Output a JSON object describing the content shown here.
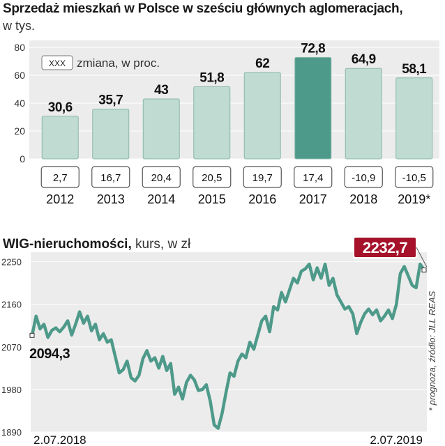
{
  "header": {
    "title": "Sprzedaż mieszkań w Polsce w sześciu głównych aglomeracjach,",
    "unit": "w tys."
  },
  "legend": {
    "box_label": "XXX",
    "text": "zmiana, w proc."
  },
  "colors": {
    "bar": "#bfdbd2",
    "bar_highlight": "#4e9a8a",
    "line": "#4e9a8a",
    "badge_last": "#a5122a",
    "panel_bg": "#ececec"
  },
  "wig": {
    "title_bold": "WIG-nieruchomości,",
    "title_rest": "kurs, w zł",
    "first_label": "2094,3",
    "last_label": "2232,7"
  },
  "source_note": "* prognoza, źródło: JLL REAS",
  "chart_data": [
    {
      "type": "bar",
      "categories": [
        "2012",
        "2013",
        "2014",
        "2015",
        "2016",
        "2017",
        "2018",
        "2019*"
      ],
      "values": [
        30.6,
        35.7,
        43,
        51.8,
        62,
        72.8,
        64.9,
        58.1
      ],
      "value_labels": [
        "30,6",
        "35,7",
        "43",
        "51,8",
        "62",
        "72,8",
        "64,9",
        "58,1"
      ],
      "change_labels": [
        "2,7",
        "16,7",
        "20,4",
        "20,5",
        "19,7",
        "17,4",
        "-10,9",
        "-10,5"
      ],
      "highlight_index": 5,
      "yticks": [
        "0",
        "20",
        "40",
        "60",
        "80"
      ],
      "ytick_values": [
        0,
        20,
        40,
        60,
        80
      ],
      "ylim": [
        0,
        80
      ],
      "grid": true
    },
    {
      "type": "line",
      "yticks": [
        "1890",
        "1980",
        "2070",
        "2160",
        "2250"
      ],
      "ytick_values": [
        1890,
        1980,
        2070,
        2160,
        2250
      ],
      "ylim": [
        1890,
        2270
      ],
      "x_labels": [
        "2.07.2018",
        "2.07.2019"
      ],
      "values": [
        2094.3,
        2135,
        2108,
        2118,
        2090,
        2105,
        2110,
        2102,
        2112,
        2125,
        2095,
        2118,
        2144,
        2120,
        2135,
        2104,
        2118,
        2085,
        2098,
        2080,
        2085,
        2050,
        2015,
        2022,
        2040,
        2005,
        1998,
        2010,
        2045,
        2062,
        2040,
        2047,
        2025,
        2050,
        2020,
        2035,
        1970,
        1985,
        1960,
        1995,
        2010,
        2000,
        1978,
        1980,
        1990,
        1955,
        1905,
        1898,
        1930,
        1975,
        2015,
        2008,
        2040,
        2055,
        2047,
        2080,
        2065,
        2095,
        2125,
        2135,
        2102,
        2155,
        2148,
        2185,
        2165,
        2190,
        2215,
        2205,
        2230,
        2235,
        2245,
        2212,
        2237,
        2215,
        2245,
        2200,
        2215,
        2180,
        2165,
        2150,
        2155,
        2140,
        2098,
        2122,
        2140,
        2150,
        2138,
        2148,
        2125,
        2135,
        2148,
        2130,
        2160,
        2225,
        2240,
        2220,
        2200,
        2195,
        2245,
        2232.7
      ]
    }
  ]
}
